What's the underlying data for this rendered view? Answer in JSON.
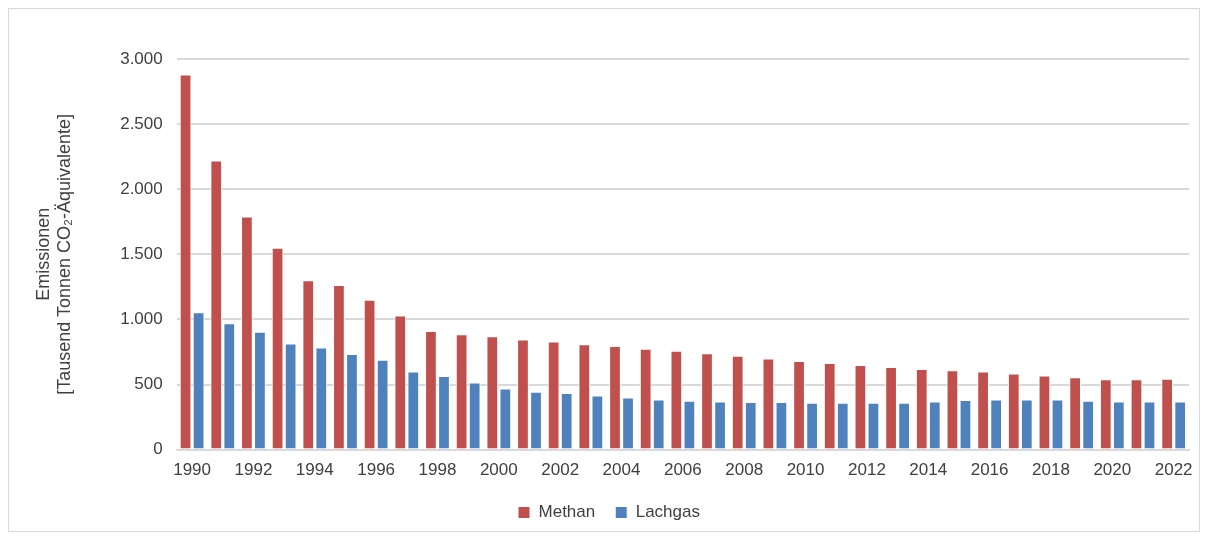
{
  "chart_data": {
    "type": "bar",
    "ylabel": "Emissionen\n[Tausend Tonnen CO₂-Äquivalente]",
    "categories": [
      "1990",
      null,
      "1992",
      null,
      "1994",
      null,
      "1996",
      null,
      "1998",
      null,
      "2000",
      null,
      "2002",
      null,
      "2004",
      null,
      "2006",
      null,
      "2008",
      null,
      "2010",
      null,
      "2012",
      null,
      "2014",
      null,
      "2016",
      null,
      "2018",
      null,
      "2020",
      null,
      "2022"
    ],
    "series": [
      {
        "name": "Methan",
        "color": "#c0504d",
        "values": [
          2880,
          2220,
          1790,
          1550,
          1300,
          1265,
          1150,
          1030,
          910,
          885,
          870,
          845,
          830,
          810,
          795,
          775,
          760,
          740,
          720,
          700,
          680,
          665,
          650,
          635,
          620,
          610,
          600,
          585,
          570,
          555,
          540,
          540,
          545
        ]
      },
      {
        "name": "Lachgas",
        "color": "#4f81bd",
        "values": [
          1055,
          970,
          905,
          815,
          785,
          735,
          690,
          600,
          565,
          515,
          470,
          445,
          435,
          415,
          400,
          385,
          375,
          370,
          365,
          365,
          360,
          360,
          360,
          360,
          370,
          380,
          385,
          385,
          385,
          375,
          370,
          370,
          370
        ]
      }
    ],
    "ylim": [
      0,
      3000
    ],
    "yticks": [
      {
        "value": 0,
        "label": "0"
      },
      {
        "value": 500,
        "label": "500"
      },
      {
        "value": 1000,
        "label": "1.000"
      },
      {
        "value": 1500,
        "label": "1.500"
      },
      {
        "value": 2000,
        "label": "2.000"
      },
      {
        "value": 2500,
        "label": "2.500"
      },
      {
        "value": 3000,
        "label": "3.000"
      }
    ],
    "grid": "y",
    "legend": "bottom"
  }
}
